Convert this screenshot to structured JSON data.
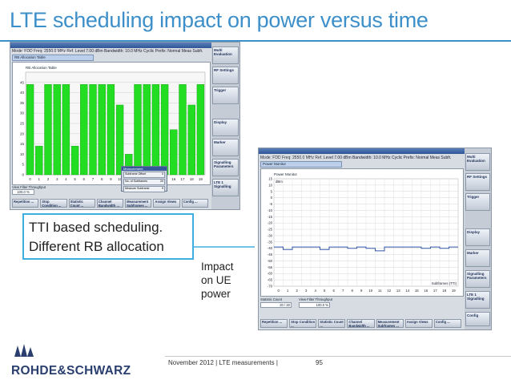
{
  "slide": {
    "title": "LTE scheduling impact on power versus time",
    "callout_line1": "TTI based scheduling.",
    "callout_line2": "Different RB allocation",
    "impact_line1": "Impact",
    "impact_line2": "on UE",
    "impact_line3": "power",
    "footer": "November 2012 | LTE measurements |",
    "page": "95",
    "logo": "ROHDE&SCHWARZ"
  },
  "colors": {
    "title": "#3c8fc9",
    "callout_border": "#40aee0",
    "rb_green": "#22dd22",
    "power_trace": "#3355aa",
    "logo": "#2a3f6e"
  },
  "screenshot_left": {
    "window_title": "LTE Measurement 1 : Multi Evaluation",
    "info_row": "Mode: FDD   Freq: 2550.0 MHz   Ref. Level   7.00 dBm   Bandwidth: 10.0 MHz   Cyclic Prefix: Normal   Meas Subfr.",
    "panel_title": "RB Allocation Table",
    "y_ticks": [
      "45",
      "40",
      "35",
      "30",
      "25",
      "20",
      "15",
      "10",
      "5",
      "0"
    ],
    "x_ticks": [
      "0",
      "1",
      "2",
      "3",
      "4",
      "5",
      "6",
      "7",
      "8",
      "9",
      "10",
      "11",
      "12",
      "13",
      "14",
      "15",
      "16",
      "17",
      "18",
      "19"
    ],
    "popup_title": "Measurement",
    "popup_rows": [
      "Subframe Offset",
      "No. of Subframes",
      "Measure Subframe"
    ],
    "popup_values": [
      "0",
      "20",
      "9"
    ],
    "status_label": "View Filter Throughput",
    "status_value": "100.0 %",
    "side_buttons": [
      "Multi Evaluation",
      "RF Settings",
      "Trigger",
      "Display",
      "Marker",
      "Signalling Parameters",
      "LTE 1 Signalling"
    ],
    "bottom_buttons": [
      "Repetition ...",
      "Stop Condition ...",
      "Statistic Count ...",
      "Channel Bandwidth ...",
      "Measurement Subframes ...",
      "Assign Views",
      "Config ..."
    ]
  },
  "screenshot_right": {
    "window_title": "LTE Measurement 1 : Multi Evaluation",
    "info_row": "Mode: FDD   Freq: 2550.0 MHz   Ref. Level   7.00 dBm   Bandwidth: 10.0 MHz   Cyclic Prefix: Normal   Meas Subfr.",
    "panel_title": "Power Monitor",
    "y_unit": "dBm",
    "y_ticks": [
      "15",
      "10",
      "5",
      "0",
      "-5",
      "-10",
      "-15",
      "-20",
      "-25",
      "-30",
      "-35",
      "-40",
      "-45",
      "-50",
      "-55",
      "-60",
      "-65",
      "-70"
    ],
    "x_ticks": [
      "0",
      "1",
      "2",
      "3",
      "4",
      "5",
      "6",
      "7",
      "8",
      "9",
      "10",
      "11",
      "12",
      "13",
      "14",
      "15",
      "16",
      "17",
      "18",
      "19"
    ],
    "x_label": "Subframes (TTI)",
    "status_label": "Statistic Count",
    "status_value": "20 / 20",
    "status_label2": "View Filter Throughput",
    "status_value2": "100.0 %",
    "side_buttons": [
      "Multi Evaluation",
      "RF Settings",
      "Trigger",
      "Display",
      "Marker",
      "Signalling Parameters",
      "LTE 1 Signalling",
      "Config"
    ],
    "bottom_buttons": [
      "Repetition ...",
      "Stop Condition ...",
      "Statistic Count ...",
      "Channel Bandwidth ...",
      "Measurement Subframes ...",
      "Assign Views",
      "Config ..."
    ]
  },
  "chart_data": [
    {
      "type": "bar",
      "title": "RB Allocation Table",
      "xlabel": "",
      "ylabel": "",
      "ylim": [
        0,
        50
      ],
      "categories": [
        "0",
        "1",
        "2",
        "3",
        "4",
        "5",
        "6",
        "7",
        "8",
        "9",
        "10",
        "11",
        "12",
        "13",
        "14",
        "15",
        "16",
        "17",
        "18",
        "19"
      ],
      "series": [
        {
          "values": [
            44,
            14,
            44,
            44,
            44,
            14,
            44,
            44,
            44,
            44,
            34,
            10,
            44,
            44,
            44,
            44,
            22,
            44,
            34,
            44
          ]
        }
      ]
    },
    {
      "type": "line",
      "title": "Power Monitor",
      "xlabel": "Subframes (TTI)",
      "ylabel": "dBm",
      "ylim": [
        -70,
        15
      ],
      "x": [
        0,
        1,
        2,
        3,
        4,
        5,
        6,
        7,
        8,
        9,
        10,
        11,
        12,
        13,
        14,
        15,
        16,
        17,
        18,
        19
      ],
      "series": [
        {
          "values": [
            -39,
            -41,
            -39,
            -39,
            -39,
            -41,
            -39,
            -39,
            -40,
            -39,
            -40,
            -42,
            -39,
            -39,
            -39,
            -39,
            -40,
            -39,
            -40,
            -39
          ]
        }
      ]
    }
  ]
}
